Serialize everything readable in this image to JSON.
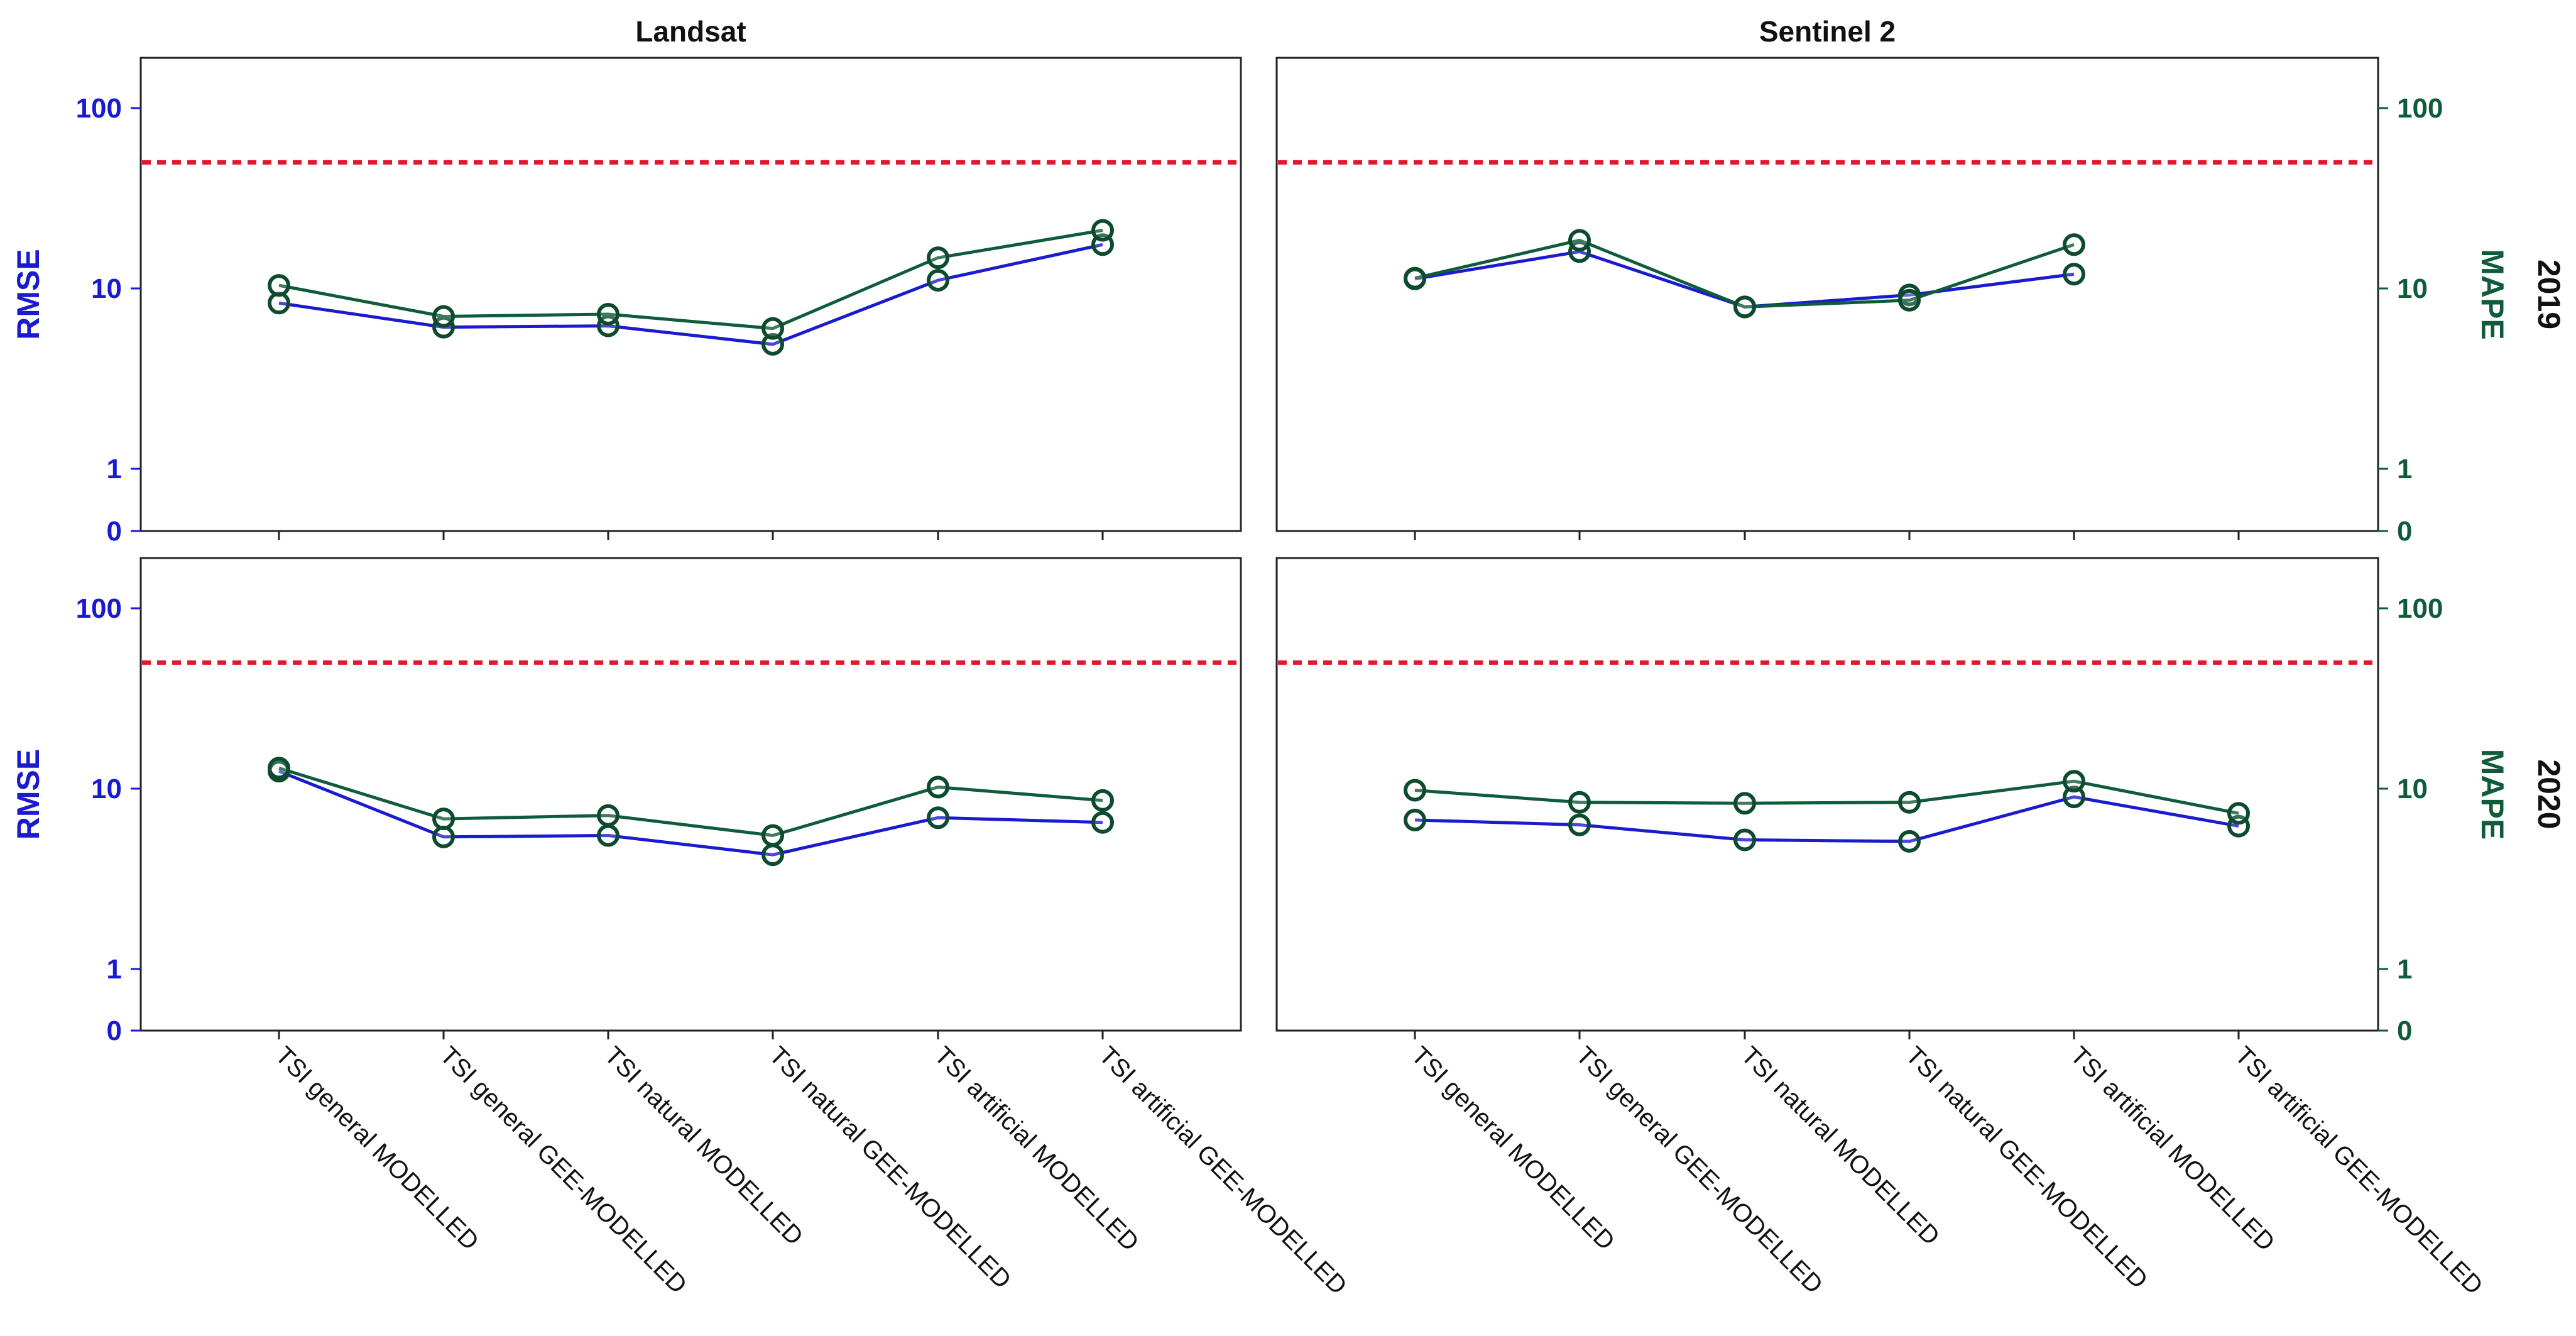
{
  "chart_data": [
    {
      "type": "line",
      "title": "Landsat",
      "row_label": "2019",
      "ylabel": "RMSE",
      "y2label": "",
      "yscale": "log",
      "yticks": [
        "100",
        "10",
        "1",
        "0"
      ],
      "reference_line": 50,
      "categories": [
        "TSI general MODELLED",
        "TSI general GEE-MODELLED",
        "TSI natural MODELLED",
        "TSI natural GEE-MODELLED",
        "TSI artificial MODELLED",
        "TSI artificial GEE-MODELLED"
      ],
      "series": [
        {
          "name": "RMSE",
          "color": "#1a1ad0",
          "values": [
            8.3,
            6.1,
            6.2,
            4.9,
            11.1,
            17.5
          ]
        },
        {
          "name": "MAPE",
          "color": "#0f5b3a",
          "values": [
            10.4,
            7.0,
            7.2,
            6.0,
            14.8,
            21.0
          ]
        }
      ]
    },
    {
      "type": "line",
      "title": "Sentinel 2",
      "row_label": "2019",
      "ylabel": "",
      "y2label": "MAPE",
      "yscale": "log",
      "yticks": [
        "100",
        "10",
        "1",
        "0"
      ],
      "reference_line": 50,
      "categories": [
        "TSI general MODELLED",
        "TSI general GEE-MODELLED",
        "TSI natural MODELLED",
        "TSI natural GEE-MODELLED",
        "TSI artificial MODELLED",
        "TSI artificial GEE-MODELLED"
      ],
      "series": [
        {
          "name": "RMSE",
          "color": "#1a1ad0",
          "values": [
            11.3,
            16.0,
            7.9,
            9.2,
            12.0,
            null
          ]
        },
        {
          "name": "MAPE",
          "color": "#0f5b3a",
          "values": [
            11.4,
            18.5,
            7.9,
            8.6,
            17.5,
            null
          ]
        }
      ]
    },
    {
      "type": "line",
      "title": "",
      "row_label": "2020",
      "ylabel": "RMSE",
      "y2label": "",
      "yscale": "log",
      "yticks": [
        "100",
        "10",
        "1",
        "0"
      ],
      "reference_line": 50,
      "categories": [
        "TSI general MODELLED",
        "TSI general GEE-MODELLED",
        "TSI natural MODELLED",
        "TSI natural GEE-MODELLED",
        "TSI artificial MODELLED",
        "TSI artificial GEE-MODELLED"
      ],
      "series": [
        {
          "name": "RMSE",
          "color": "#1a1ad0",
          "values": [
            12.5,
            5.4,
            5.5,
            4.3,
            6.9,
            6.5
          ]
        },
        {
          "name": "MAPE",
          "color": "#0f5b3a",
          "values": [
            13.0,
            6.8,
            7.1,
            5.5,
            10.2,
            8.6
          ]
        }
      ]
    },
    {
      "type": "line",
      "title": "",
      "row_label": "2020",
      "ylabel": "",
      "y2label": "MAPE",
      "yscale": "log",
      "yticks": [
        "100",
        "10",
        "1",
        "0"
      ],
      "reference_line": 50,
      "categories": [
        "TSI general MODELLED",
        "TSI general GEE-MODELLED",
        "TSI natural MODELLED",
        "TSI natural GEE-MODELLED",
        "TSI artificial MODELLED",
        "TSI artificial GEE-MODELLED"
      ],
      "series": [
        {
          "name": "RMSE",
          "color": "#1a1ad0",
          "values": [
            6.7,
            6.3,
            5.2,
            5.1,
            9.0,
            6.2
          ]
        },
        {
          "name": "MAPE",
          "color": "#0f5b3a",
          "values": [
            9.8,
            8.4,
            8.3,
            8.4,
            11.0,
            7.3
          ]
        }
      ]
    }
  ],
  "colors": {
    "rmse": "#1a1ad0",
    "mape": "#0f5b3a",
    "reference": "#e0182e",
    "frame": "#222222"
  }
}
